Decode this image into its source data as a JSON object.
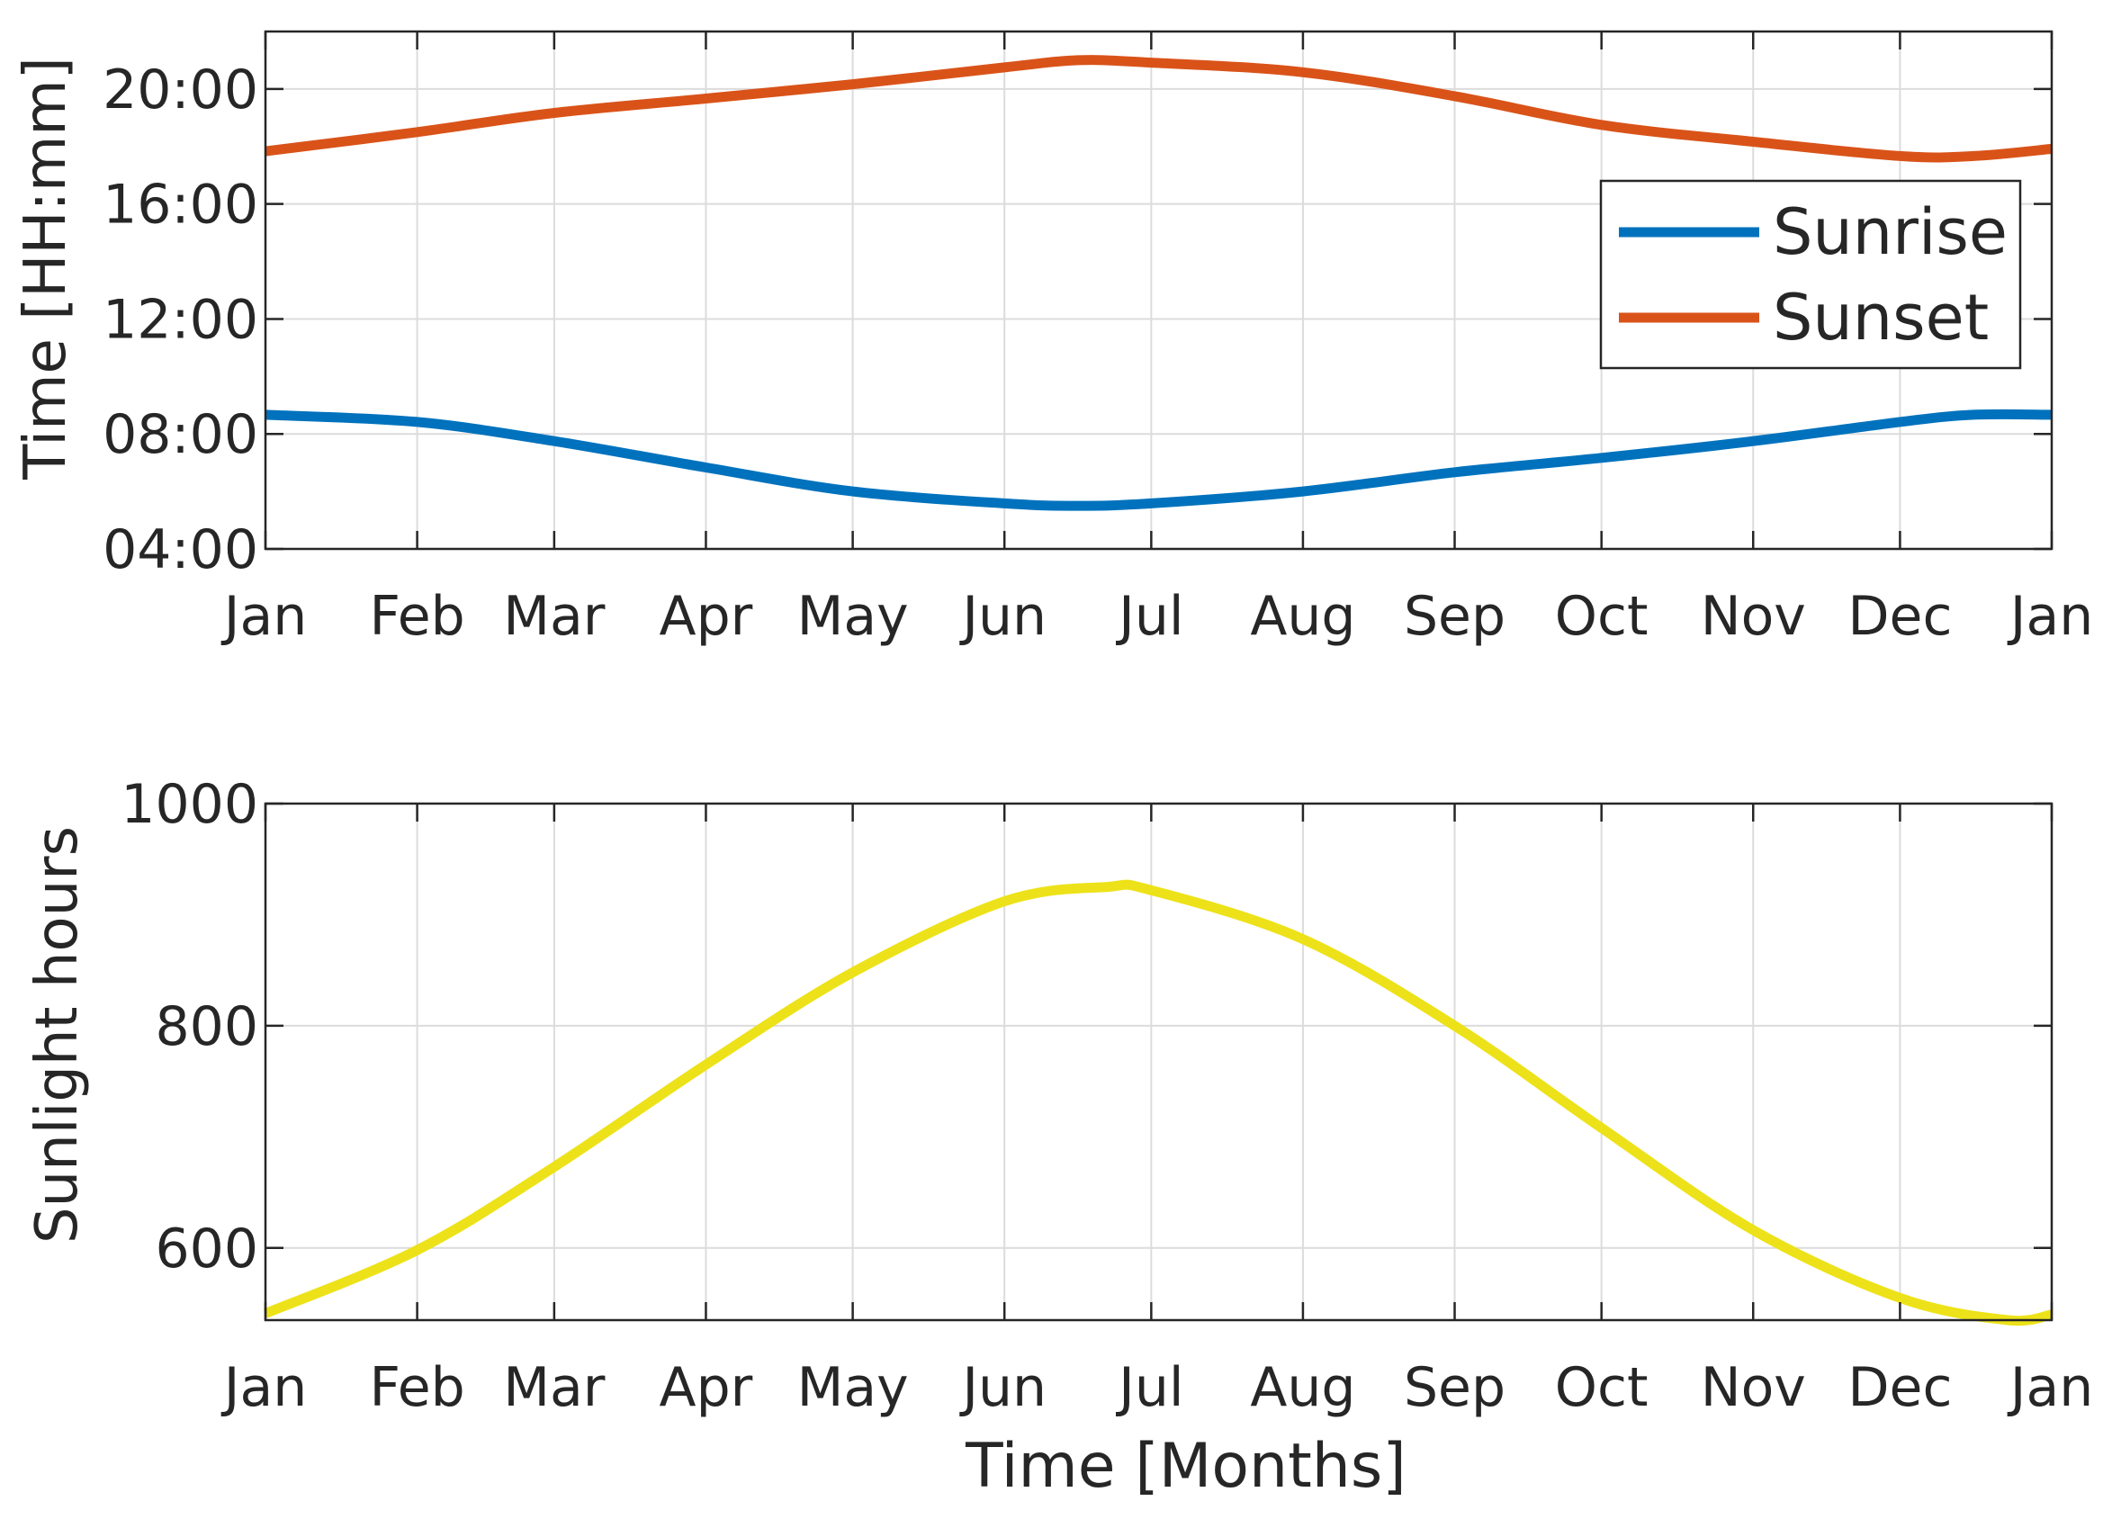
{
  "chart_data": [
    {
      "type": "line",
      "title": "",
      "xlabel": "",
      "ylabel": "Time [HH:mm]",
      "x_unit": "day of year",
      "xlim": [
        1,
        366
      ],
      "xticks": [
        1,
        32,
        60,
        91,
        121,
        152,
        182,
        213,
        244,
        274,
        305,
        335,
        366
      ],
      "xtick_labels": [
        "Jan",
        "Feb",
        "Mar",
        "Apr",
        "May",
        "Jun",
        "Jul",
        "Aug",
        "Sep",
        "Oct",
        "Nov",
        "Dec",
        "Jan"
      ],
      "ylim": [
        "04:00",
        "22:00"
      ],
      "yticks": [
        "04:00",
        "08:00",
        "12:00",
        "16:00",
        "20:00"
      ],
      "grid": true,
      "legend": {
        "placement": "right",
        "entries": [
          "Sunrise",
          "Sunset"
        ]
      },
      "series": [
        {
          "name": "Sunrise",
          "color": "#0072BD",
          "x": [
            1,
            32,
            60,
            91,
            121,
            152,
            167,
            182,
            213,
            244,
            274,
            305,
            335,
            350,
            366
          ],
          "y": [
            "08:40",
            "08:25",
            "07:45",
            "06:50",
            "06:00",
            "05:35",
            "05:30",
            "05:35",
            "06:00",
            "06:40",
            "07:10",
            "07:45",
            "08:25",
            "08:40",
            "08:40"
          ]
        },
        {
          "name": "Sunset",
          "color": "#D95319",
          "x": [
            1,
            32,
            60,
            91,
            121,
            152,
            167,
            182,
            213,
            244,
            274,
            305,
            335,
            350,
            366
          ],
          "y": [
            "17:50",
            "18:30",
            "19:10",
            "19:40",
            "20:10",
            "20:45",
            "21:00",
            "20:55",
            "20:35",
            "19:45",
            "18:45",
            "18:10",
            "17:40",
            "17:40",
            "17:55"
          ]
        }
      ]
    },
    {
      "type": "line",
      "title": "",
      "xlabel": "Time [Months]",
      "ylabel": "Sunlight hours",
      "x_unit": "day of year",
      "xlim": [
        1,
        366
      ],
      "xticks": [
        1,
        32,
        60,
        91,
        121,
        152,
        182,
        213,
        244,
        274,
        305,
        335,
        366
      ],
      "xtick_labels": [
        "Jan",
        "Feb",
        "Mar",
        "Apr",
        "May",
        "Jun",
        "Jul",
        "Aug",
        "Sep",
        "Oct",
        "Nov",
        "Dec",
        "Jan"
      ],
      "ylim": [
        535,
        1000
      ],
      "yticks": [
        600,
        800,
        1000
      ],
      "grid": true,
      "series": [
        {
          "color": "#EDE219",
          "x": [
            1,
            32,
            60,
            91,
            121,
            152,
            173,
            182,
            213,
            244,
            274,
            305,
            335,
            357,
            366
          ],
          "y": [
            541,
            598,
            673,
            765,
            848,
            912,
            925,
            922,
            878,
            800,
            708,
            616,
            555,
            535,
            540
          ]
        }
      ]
    }
  ]
}
